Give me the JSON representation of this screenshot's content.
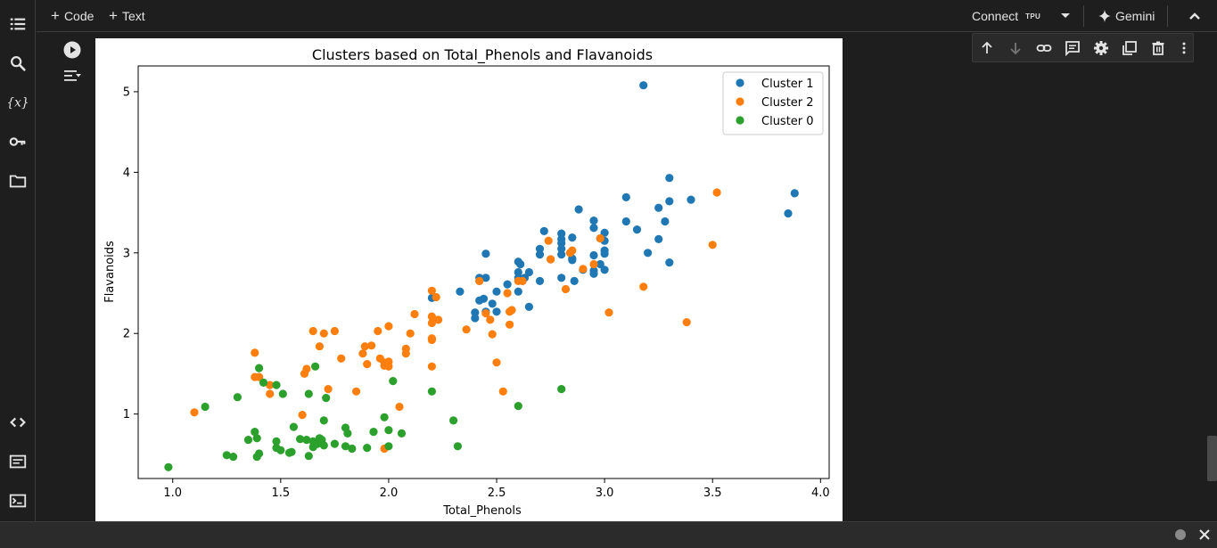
{
  "toolbar": {
    "code_label": "Code",
    "text_label": "Text",
    "connect_label": "Connect",
    "runtime_label": "TPU",
    "gemini_label": "Gemini"
  },
  "rail": {
    "icons": [
      "table-of-contents-icon",
      "search-icon",
      "variables-icon",
      "secrets-key-icon",
      "files-folder-icon",
      "code-snippets-icon",
      "command-palette-icon",
      "terminal-icon"
    ]
  },
  "cell_toolbar": {
    "icons": [
      "move-up-icon",
      "move-down-icon",
      "link-icon",
      "comment-icon",
      "settings-gear-icon",
      "mirror-cell-icon",
      "delete-icon",
      "more-vert-icon"
    ]
  },
  "colors": {
    "cluster1": "#1f77b4",
    "cluster2": "#ff7f0e",
    "cluster0": "#2ca02c"
  },
  "chart_data": {
    "type": "scatter",
    "title": "Clusters based on Total_Phenols and Flavanoids",
    "xlabel": "Total_Phenols",
    "ylabel": "Flavanoids",
    "xlim": [
      0.84,
      4.04
    ],
    "ylim": [
      0.2,
      5.32
    ],
    "xticks": [
      "1.0",
      "1.5",
      "2.0",
      "2.5",
      "3.0",
      "3.5",
      "4.0"
    ],
    "yticks": [
      "1",
      "2",
      "3",
      "4",
      "5"
    ],
    "legend_position": "upper right",
    "grid": false,
    "series": [
      {
        "name": "Cluster 1",
        "color": "#1f77b4",
        "points": [
          [
            3.18,
            5.08
          ],
          [
            3.3,
            3.93
          ],
          [
            3.88,
            3.74
          ],
          [
            3.85,
            3.49
          ],
          [
            3.1,
            3.69
          ],
          [
            3.4,
            3.66
          ],
          [
            3.3,
            3.64
          ],
          [
            3.25,
            3.56
          ],
          [
            2.88,
            3.54
          ],
          [
            2.95,
            3.4
          ],
          [
            3.1,
            3.39
          ],
          [
            3.28,
            3.39
          ],
          [
            3.15,
            3.29
          ],
          [
            2.72,
            3.27
          ],
          [
            2.8,
            3.24
          ],
          [
            2.8,
            3.17
          ],
          [
            2.85,
            3.19
          ],
          [
            3.0,
            3.25
          ],
          [
            2.98,
            3.18
          ],
          [
            3.0,
            3.15
          ],
          [
            3.25,
            3.17
          ],
          [
            2.95,
            3.31
          ],
          [
            2.8,
            3.12
          ],
          [
            2.7,
            3.05
          ],
          [
            2.7,
            2.98
          ],
          [
            2.8,
            3.05
          ],
          [
            2.8,
            2.98
          ],
          [
            2.85,
            2.93
          ],
          [
            3.0,
            3.03
          ],
          [
            3.0,
            2.99
          ],
          [
            2.95,
            2.97
          ],
          [
            2.45,
            2.99
          ],
          [
            2.75,
            2.92
          ],
          [
            2.85,
            2.91
          ],
          [
            2.9,
            2.79
          ],
          [
            2.95,
            2.78
          ],
          [
            3.0,
            2.79
          ],
          [
            2.98,
            2.86
          ],
          [
            3.2,
            3.0
          ],
          [
            3.3,
            2.88
          ],
          [
            2.95,
            2.74
          ],
          [
            2.6,
            2.89
          ],
          [
            2.61,
            2.86
          ],
          [
            2.65,
            2.76
          ],
          [
            2.6,
            2.76
          ],
          [
            2.63,
            2.69
          ],
          [
            2.6,
            2.69
          ],
          [
            2.7,
            2.65
          ],
          [
            2.8,
            2.69
          ],
          [
            2.86,
            2.65
          ],
          [
            2.45,
            2.69
          ],
          [
            2.42,
            2.69
          ],
          [
            2.42,
            2.65
          ],
          [
            2.62,
            2.65
          ],
          [
            2.55,
            2.61
          ],
          [
            2.5,
            2.52
          ],
          [
            2.6,
            2.52
          ],
          [
            2.33,
            2.52
          ],
          [
            2.44,
            2.43
          ],
          [
            2.42,
            2.41
          ],
          [
            2.48,
            2.37
          ],
          [
            2.45,
            2.27
          ],
          [
            2.5,
            2.27
          ],
          [
            2.65,
            2.33
          ],
          [
            2.4,
            2.19
          ],
          [
            2.2,
            2.44
          ],
          [
            2.4,
            2.26
          ]
        ]
      },
      {
        "name": "Cluster 2",
        "color": "#ff7f0e",
        "points": [
          [
            3.52,
            3.75
          ],
          [
            3.5,
            3.1
          ],
          [
            3.38,
            2.14
          ],
          [
            3.18,
            2.58
          ],
          [
            3.02,
            2.26
          ],
          [
            2.74,
            3.15
          ],
          [
            2.98,
            3.18
          ],
          [
            2.85,
            3.03
          ],
          [
            2.84,
            3.0
          ],
          [
            2.75,
            2.92
          ],
          [
            2.9,
            2.8
          ],
          [
            2.95,
            2.86
          ],
          [
            2.82,
            2.55
          ],
          [
            2.6,
            2.65
          ],
          [
            2.62,
            2.65
          ],
          [
            2.55,
            2.5
          ],
          [
            2.56,
            2.27
          ],
          [
            2.57,
            2.29
          ],
          [
            2.45,
            2.25
          ],
          [
            2.47,
            2.17
          ],
          [
            2.56,
            2.11
          ],
          [
            2.36,
            2.05
          ],
          [
            2.48,
            1.99
          ],
          [
            2.42,
            2.65
          ],
          [
            2.2,
            2.53
          ],
          [
            2.22,
            2.45
          ],
          [
            2.2,
            2.21
          ],
          [
            2.23,
            2.17
          ],
          [
            2.2,
            2.13
          ],
          [
            2.2,
            1.94
          ],
          [
            2.2,
            1.92
          ],
          [
            2.12,
            2.24
          ],
          [
            2.1,
            2.0
          ],
          [
            2.08,
            1.81
          ],
          [
            2.08,
            1.75
          ],
          [
            2.0,
            2.09
          ],
          [
            1.95,
            2.03
          ],
          [
            1.92,
            1.85
          ],
          [
            1.89,
            1.84
          ],
          [
            1.88,
            1.75
          ],
          [
            1.9,
            1.62
          ],
          [
            1.98,
            1.64
          ],
          [
            2.0,
            1.65
          ],
          [
            1.96,
            1.69
          ],
          [
            1.98,
            1.6
          ],
          [
            2.0,
            1.59
          ],
          [
            2.05,
            1.09
          ],
          [
            1.98,
            0.57
          ],
          [
            2.2,
            1.59
          ],
          [
            2.5,
            1.64
          ],
          [
            2.53,
            1.28
          ],
          [
            1.85,
            1.28
          ],
          [
            1.78,
            1.69
          ],
          [
            1.75,
            2.03
          ],
          [
            1.68,
            1.84
          ],
          [
            1.7,
            2.0
          ],
          [
            1.65,
            2.03
          ],
          [
            1.62,
            1.56
          ],
          [
            1.61,
            1.5
          ],
          [
            1.72,
            1.31
          ],
          [
            1.6,
            0.99
          ],
          [
            1.45,
            1.36
          ],
          [
            1.45,
            1.25
          ],
          [
            1.4,
            1.46
          ],
          [
            1.38,
            1.76
          ],
          [
            1.1,
            1.02
          ],
          [
            1.38,
            1.46
          ]
        ]
      },
      {
        "name": "Cluster 0",
        "color": "#2ca02c",
        "points": [
          [
            0.98,
            0.34
          ],
          [
            1.15,
            1.09
          ],
          [
            1.25,
            0.49
          ],
          [
            1.28,
            0.47
          ],
          [
            1.3,
            1.21
          ],
          [
            1.35,
            0.68
          ],
          [
            1.38,
            0.78
          ],
          [
            1.39,
            0.7
          ],
          [
            1.39,
            0.47
          ],
          [
            1.4,
            0.51
          ],
          [
            1.4,
            1.57
          ],
          [
            1.42,
            1.39
          ],
          [
            1.48,
            1.36
          ],
          [
            1.48,
            0.66
          ],
          [
            1.48,
            0.58
          ],
          [
            1.5,
            0.55
          ],
          [
            1.51,
            1.25
          ],
          [
            1.54,
            0.52
          ],
          [
            1.55,
            0.53
          ],
          [
            1.56,
            0.84
          ],
          [
            1.59,
            0.69
          ],
          [
            1.62,
            0.68
          ],
          [
            1.63,
            0.48
          ],
          [
            1.63,
            1.25
          ],
          [
            1.65,
            0.66
          ],
          [
            1.65,
            0.59
          ],
          [
            1.66,
            1.59
          ],
          [
            1.67,
            0.63
          ],
          [
            1.68,
            0.7
          ],
          [
            1.69,
            0.68
          ],
          [
            1.7,
            0.61
          ],
          [
            1.7,
            0.92
          ],
          [
            1.71,
            1.2
          ],
          [
            1.75,
            0.63
          ],
          [
            1.8,
            0.6
          ],
          [
            1.8,
            0.83
          ],
          [
            1.81,
            0.76
          ],
          [
            1.83,
            0.57
          ],
          [
            1.9,
            0.58
          ],
          [
            1.93,
            0.78
          ],
          [
            1.98,
            0.96
          ],
          [
            2.0,
            0.8
          ],
          [
            2.0,
            0.6
          ],
          [
            2.02,
            1.41
          ],
          [
            2.06,
            0.76
          ],
          [
            2.2,
            1.28
          ],
          [
            2.3,
            0.92
          ],
          [
            2.32,
            0.6
          ],
          [
            2.6,
            1.1
          ],
          [
            2.8,
            1.31
          ]
        ]
      }
    ]
  }
}
